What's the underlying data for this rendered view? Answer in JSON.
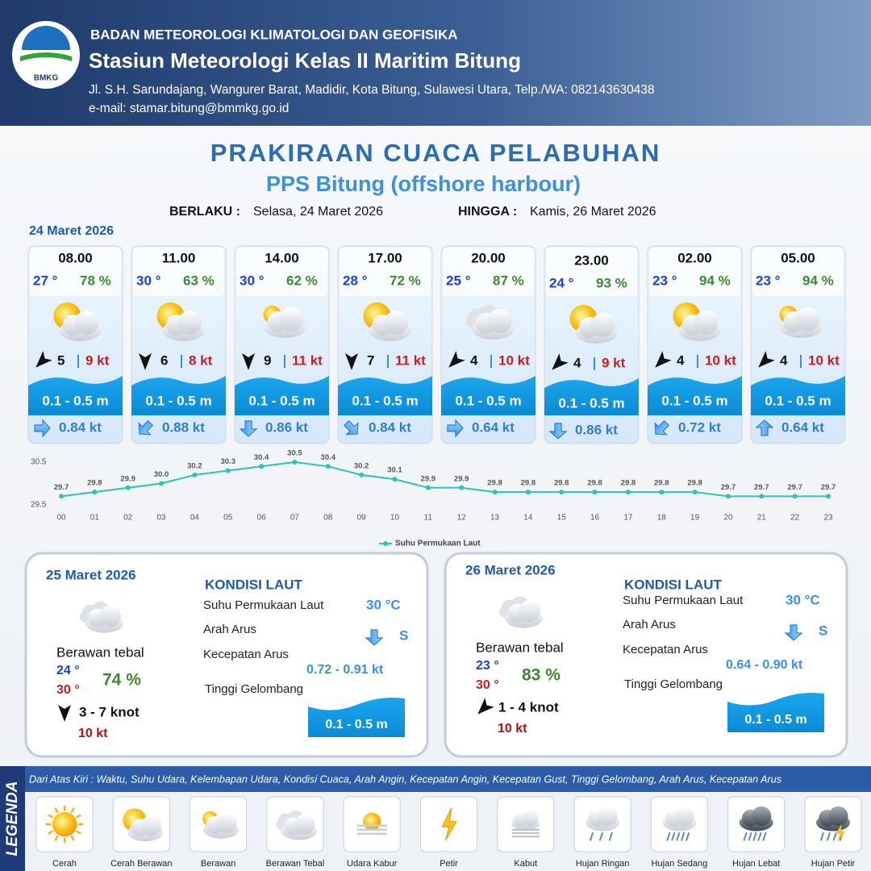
{
  "header": {
    "organization": "BADAN METEOROLOGI KLIMATOLOGI DAN GEOFISIKA",
    "station": "Stasiun Meteorologi Kelas II Maritim Bitung",
    "address": "Jl. S.H. Sarundajang, Wangurer Barat, Madidir, Kota Bitung, Sulawesi Utara, Telp./WA: 082143630438",
    "email": "e-mail: stamar.bitung@bmmkg.go.id",
    "logo": "BMKG"
  },
  "title": "PRAKIRAAN CUACA PELABUHAN",
  "subtitle": "PPS Bitung (offshore harbour)",
  "validity": {
    "from_label": "BERLAKU :",
    "from": "Selasa, 24 Maret 2026",
    "to_label": "HINGGA :",
    "to": "Kamis, 26 Maret 2026"
  },
  "today": {
    "date": "24 Maret 2026",
    "forecasts": [
      {
        "time": "08.00",
        "temperature": "27 °",
        "humidity": "78 %",
        "wind": "5",
        "gust": "9 kt",
        "wave": "0.1 - 0.5 m",
        "current": "0.84 kt"
      },
      {
        "time": "11.00",
        "temperature": "30 °",
        "humidity": "63 %",
        "wind": "6",
        "gust": "8 kt",
        "wave": "0.1 - 0.5 m",
        "current": "0.88 kt"
      },
      {
        "time": "14.00",
        "temperature": "30 °",
        "humidity": "62 %",
        "wind": "9",
        "gust": "11 kt",
        "wave": "0.1 - 0.5 m",
        "current": "0.86 kt"
      },
      {
        "time": "17.00",
        "temperature": "28 °",
        "humidity": "72 %",
        "wind": "7",
        "gust": "11 kt",
        "wave": "0.1 - 0.5 m",
        "current": "0.84 kt"
      },
      {
        "time": "20.00",
        "temperature": "25 °",
        "humidity": "87 %",
        "wind": "4",
        "gust": "10 kt",
        "wave": "0.1 - 0.5 m",
        "current": "0.64 kt"
      },
      {
        "time": "23.00",
        "temperature": "24 °",
        "humidity": "93 %",
        "wind": "4",
        "gust": "9 kt",
        "wave": "0.1 - 0.5 m",
        "current": "0.86 kt"
      },
      {
        "time": "02.00",
        "temperature": "23 °",
        "humidity": "94 %",
        "wind": "4",
        "gust": "10 kt",
        "wave": "0.1 - 0.5 m",
        "current": "0.72 kt"
      },
      {
        "time": "05.00",
        "temperature": "23 °",
        "humidity": "94 %",
        "wind": "4",
        "gust": "10 kt",
        "wave": "0.1 - 0.5 m",
        "current": "0.64 kt"
      }
    ]
  },
  "chart_data": {
    "type": "line",
    "categories": [
      "00",
      "01",
      "02",
      "03",
      "04",
      "05",
      "06",
      "07",
      "08",
      "09",
      "10",
      "11",
      "12",
      "13",
      "14",
      "15",
      "16",
      "17",
      "18",
      "19",
      "20",
      "21",
      "22",
      "23"
    ],
    "series": [
      {
        "name": "Suhu Permukaan Laut",
        "color": "#2cc4b2",
        "values": [
          29.7,
          29.8,
          29.9,
          30.0,
          30.2,
          30.3,
          30.4,
          30.5,
          30.4,
          30.2,
          30.1,
          29.9,
          29.9,
          29.8,
          29.8,
          29.8,
          29.8,
          29.8,
          29.8,
          29.8,
          29.7,
          29.7,
          29.7,
          29.7
        ],
        "value_labels": [
          "29.7",
          "29.8",
          "29.9",
          "30.0",
          "30.2",
          "30.3",
          "30.4",
          "30.5",
          "30.4",
          "30.2",
          "30.1",
          "29.9",
          "29.9",
          "29.8",
          "29.8",
          "29.8",
          "29.8",
          "29.8",
          "29.8",
          "29.8",
          "29.7",
          "29.7",
          "29.7",
          "29.7"
        ]
      }
    ],
    "ylim": [
      29.5,
      30.5
    ],
    "yticks": [
      29.5,
      30.5
    ]
  },
  "next_days": [
    {
      "date": "25 Maret 2026",
      "condition": "Berawan tebal",
      "temp_min": "24 °",
      "temp_max": "30 °",
      "humidity": "74 %",
      "wind": "3  - 7 knot",
      "gust": "10 kt",
      "heading": "KONDISI LAUT",
      "sst_label": "Suhu Permukaan Laut",
      "sst": "30 °C",
      "current_dir_label": "Arah Arus",
      "current_dir": "S",
      "current_speed_label": "Kecepatan Arus",
      "current_speed": "0.72 - 0.91 kt",
      "wave_label": "Tinggi Gelombang",
      "wave": "0.1 - 0.5 m"
    },
    {
      "date": "26 Maret 2026",
      "condition": "Berawan tebal",
      "temp_min": "23 °",
      "temp_max": "30 °",
      "humidity": "83 %",
      "wind": "1 - 4 knot",
      "gust": "10 kt",
      "heading": "KONDISI LAUT",
      "sst_label": "Suhu Permukaan Laut",
      "sst": "30 °C",
      "current_dir_label": "Arah Arus",
      "current_dir": "S",
      "current_speed_label": "Kecepatan Arus",
      "current_speed": "0.64 - 0.90 kt",
      "wave_label": "Tinggi Gelombang",
      "wave": "0.1 - 0.5 m"
    }
  ],
  "legend": {
    "title": "LEGENDA",
    "description": "Dari Atas Kiri : Waktu, Suhu Udara, Kelembapan Udara, Kondisi Cuaca, Arah Angin, Kecepatan Angin, Kecepatan Gust, Tinggi Gelombang, Arah Arus, Kecepatan Arus",
    "items": [
      "Cerah",
      "Cerah Berawan",
      "Berawan",
      "Berawan Tebal",
      "Udara Kabur",
      "Petir",
      "Kabut",
      "Hujan Ringan",
      "Hujan Sedang",
      "Hujan Lebat",
      "Hujan Petir"
    ]
  }
}
